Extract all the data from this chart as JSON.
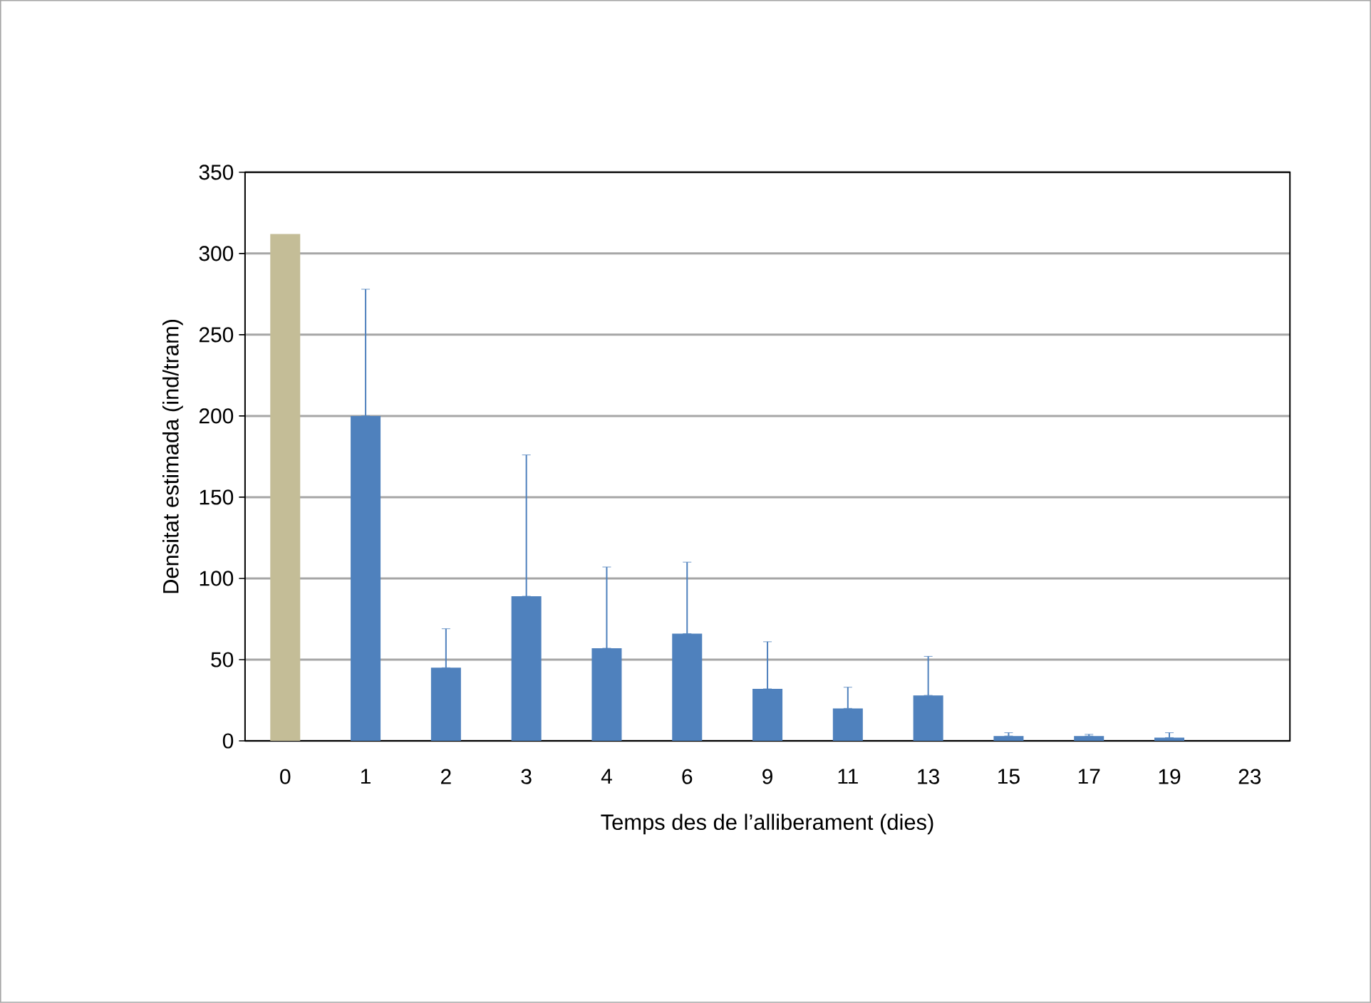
{
  "chart_data": {
    "type": "bar",
    "xlabel": "Temps des de l’alliberament (dies)",
    "ylabel": "Densitat estimada (ind/tram)",
    "categories": [
      "0",
      "1",
      "2",
      "3",
      "4",
      "6",
      "9",
      "11",
      "13",
      "15",
      "17",
      "19",
      "23"
    ],
    "values": [
      312,
      200,
      45,
      89,
      57,
      66,
      32,
      20,
      28,
      3,
      3,
      2,
      0
    ],
    "errors": [
      null,
      [
        200,
        278
      ],
      [
        45,
        69
      ],
      [
        89,
        176
      ],
      [
        57,
        107
      ],
      [
        66,
        110
      ],
      [
        32,
        61
      ],
      [
        20,
        33
      ],
      [
        28,
        52
      ],
      [
        3,
        5
      ],
      [
        3,
        4
      ],
      [
        2,
        5
      ],
      null
    ],
    "colors": [
      "#c4bd97",
      "#4f81bd",
      "#4f81bd",
      "#4f81bd",
      "#4f81bd",
      "#4f81bd",
      "#4f81bd",
      "#4f81bd",
      "#4f81bd",
      "#4f81bd",
      "#4f81bd",
      "#4f81bd",
      "#4f81bd"
    ],
    "ylim": [
      0,
      350
    ],
    "yticks": [
      0,
      50,
      100,
      150,
      200,
      250,
      300,
      350
    ],
    "grid": "y"
  }
}
